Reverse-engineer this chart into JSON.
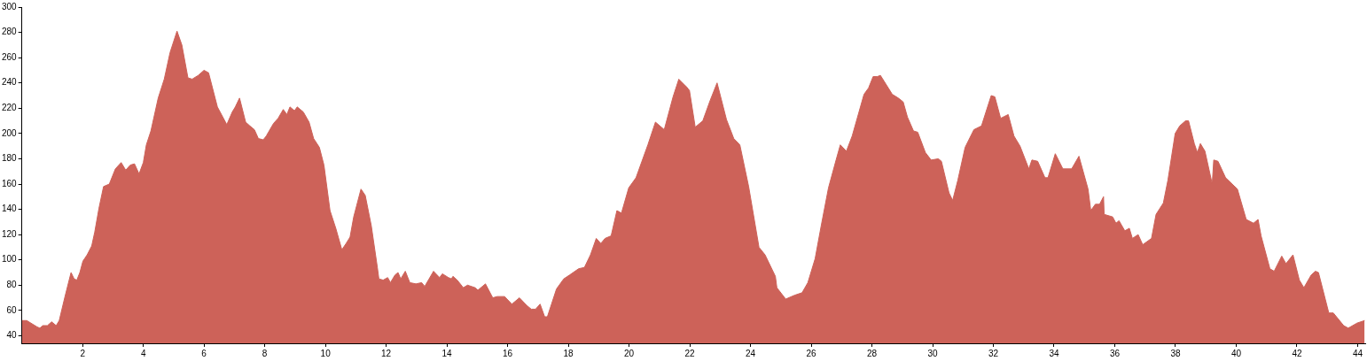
{
  "chart_data": {
    "type": "area",
    "color": "#cd6259",
    "marker": "none",
    "grid": false,
    "legend": false,
    "xlim": [
      0,
      44.25
    ],
    "ylim": [
      34,
      300
    ],
    "xticks": [
      2,
      4,
      6,
      8,
      10,
      12,
      14,
      16,
      18,
      20,
      22,
      24,
      26,
      28,
      30,
      32,
      34,
      36,
      38,
      40,
      42,
      44
    ],
    "yticks": [
      40,
      60,
      80,
      100,
      120,
      140,
      160,
      180,
      200,
      220,
      240,
      260,
      280,
      300
    ],
    "x": [
      0,
      0.16,
      0.5,
      0.59,
      0.69,
      0.84,
      0.98,
      1.13,
      1.23,
      1.42,
      1.62,
      1.72,
      1.81,
      1.91,
      2.01,
      2.15,
      2.3,
      2.4,
      2.54,
      2.69,
      2.88,
      3.08,
      3.27,
      3.42,
      3.57,
      3.71,
      3.86,
      4.0,
      4.1,
      4.25,
      4.49,
      4.69,
      4.88,
      5.11,
      5.27,
      5.47,
      5.61,
      5.81,
      6.0,
      6.15,
      6.44,
      6.64,
      6.75,
      6.93,
      7.03,
      7.17,
      7.37,
      7.51,
      7.66,
      7.79,
      7.95,
      8.05,
      8.29,
      8.44,
      8.61,
      8.73,
      8.83,
      8.98,
      9.07,
      9.27,
      9.46,
      9.61,
      9.8,
      9.95,
      10.15,
      10.34,
      10.54,
      10.68,
      10.81,
      10.93,
      11.17,
      11.31,
      11.51,
      11.71,
      11.76,
      11.9,
      12.05,
      12.14,
      12.29,
      12.39,
      12.48,
      12.63,
      12.78,
      12.98,
      13.17,
      13.27,
      13.56,
      13.76,
      13.85,
      14.05,
      14.15,
      14.2,
      14.34,
      14.54,
      14.68,
      14.93,
      15.02,
      15.27,
      15.51,
      15.66,
      15.9,
      16.14,
      16.39,
      16.63,
      16.78,
      16.92,
      17.07,
      17.22,
      17.31,
      17.61,
      17.85,
      18.04,
      18.34,
      18.53,
      18.73,
      18.92,
      19.07,
      19.21,
      19.41,
      19.6,
      19.75,
      19.99,
      20.23,
      20.62,
      20.87,
      21.16,
      21.45,
      21.64,
      21.89,
      21.99,
      22.18,
      22.43,
      22.67,
      22.9,
      23.21,
      23.45,
      23.65,
      23.94,
      24.28,
      24.48,
      24.82,
      24.87,
      25.16,
      25.45,
      25.7,
      25.89,
      26.13,
      26.33,
      26.57,
      26.82,
      26.96,
      27.16,
      27.35,
      27.74,
      27.89,
      28.04,
      28.18,
      28.28,
      28.67,
      28.87,
      29.03,
      29.17,
      29.37,
      29.51,
      29.76,
      29.95,
      30.19,
      30.29,
      30.54,
      30.66,
      30.83,
      31.07,
      31.36,
      31.61,
      31.93,
      32.05,
      32.24,
      32.49,
      32.68,
      32.88,
      33.17,
      33.27,
      33.46,
      33.7,
      33.8,
      34.04,
      34.29,
      34.58,
      34.82,
      35.12,
      35.21,
      35.36,
      35.5,
      35.63,
      35.65,
      35.93,
      36.04,
      36.14,
      36.33,
      36.48,
      36.58,
      36.77,
      36.92,
      37.21,
      37.36,
      37.6,
      37.75,
      37.99,
      38.14,
      38.33,
      38.43,
      38.62,
      38.72,
      38.82,
      38.97,
      39.21,
      39.26,
      39.4,
      39.65,
      40.04,
      40.33,
      40.57,
      40.72,
      40.82,
      41.11,
      41.25,
      41.5,
      41.64,
      41.87,
      42.08,
      42.23,
      42.47,
      42.61,
      42.71,
      43.05,
      43.2,
      43.54,
      43.69,
      43.98,
      44.23
    ],
    "values": [
      52,
      52,
      47,
      46,
      48,
      48,
      51,
      48,
      52,
      71,
      90,
      85,
      84,
      90,
      99,
      104,
      111,
      122,
      141,
      158,
      160,
      172,
      177,
      171,
      175,
      176,
      168,
      177,
      191,
      202,
      228,
      243,
      264,
      281,
      270,
      244,
      243,
      246,
      250,
      248,
      221,
      212,
      207,
      217,
      221,
      228,
      209,
      206,
      203,
      196,
      195,
      198,
      208,
      212,
      219,
      215,
      221,
      218,
      221,
      217,
      209,
      196,
      189,
      175,
      139,
      125,
      108,
      113,
      118,
      134,
      156,
      151,
      127,
      94,
      85,
      84,
      86,
      82,
      88,
      90,
      85,
      91,
      82,
      81,
      82,
      79,
      91,
      86,
      89,
      86,
      85,
      87,
      84,
      78,
      80,
      78,
      76,
      81,
      70,
      71,
      71,
      65,
      70,
      64,
      61,
      61,
      65,
      55,
      55,
      77,
      85,
      88,
      93,
      94,
      104,
      117,
      113,
      117,
      119,
      139,
      137,
      157,
      165,
      191,
      209,
      203,
      229,
      243,
      237,
      234,
      205,
      210,
      226,
      240,
      211,
      196,
      191,
      158,
      110,
      104,
      87,
      78,
      69,
      72,
      74,
      82,
      101,
      127,
      157,
      179,
      191,
      186,
      198,
      231,
      236,
      245,
      245,
      246,
      231,
      228,
      225,
      213,
      202,
      201,
      185,
      179,
      180,
      178,
      153,
      147,
      163,
      189,
      203,
      206,
      230,
      229,
      212,
      215,
      198,
      190,
      172,
      179,
      178,
      165,
      165,
      184,
      172,
      172,
      182,
      156,
      139,
      144,
      144,
      150,
      136,
      134,
      129,
      131,
      123,
      125,
      117,
      120,
      112,
      117,
      136,
      145,
      163,
      200,
      206,
      210,
      210,
      192,
      185,
      192,
      186,
      160,
      179,
      178,
      165,
      156,
      132,
      129,
      132,
      119,
      93,
      91,
      103,
      97,
      104,
      84,
      78,
      88,
      91,
      90,
      58,
      58,
      48,
      46,
      50,
      52
    ]
  }
}
